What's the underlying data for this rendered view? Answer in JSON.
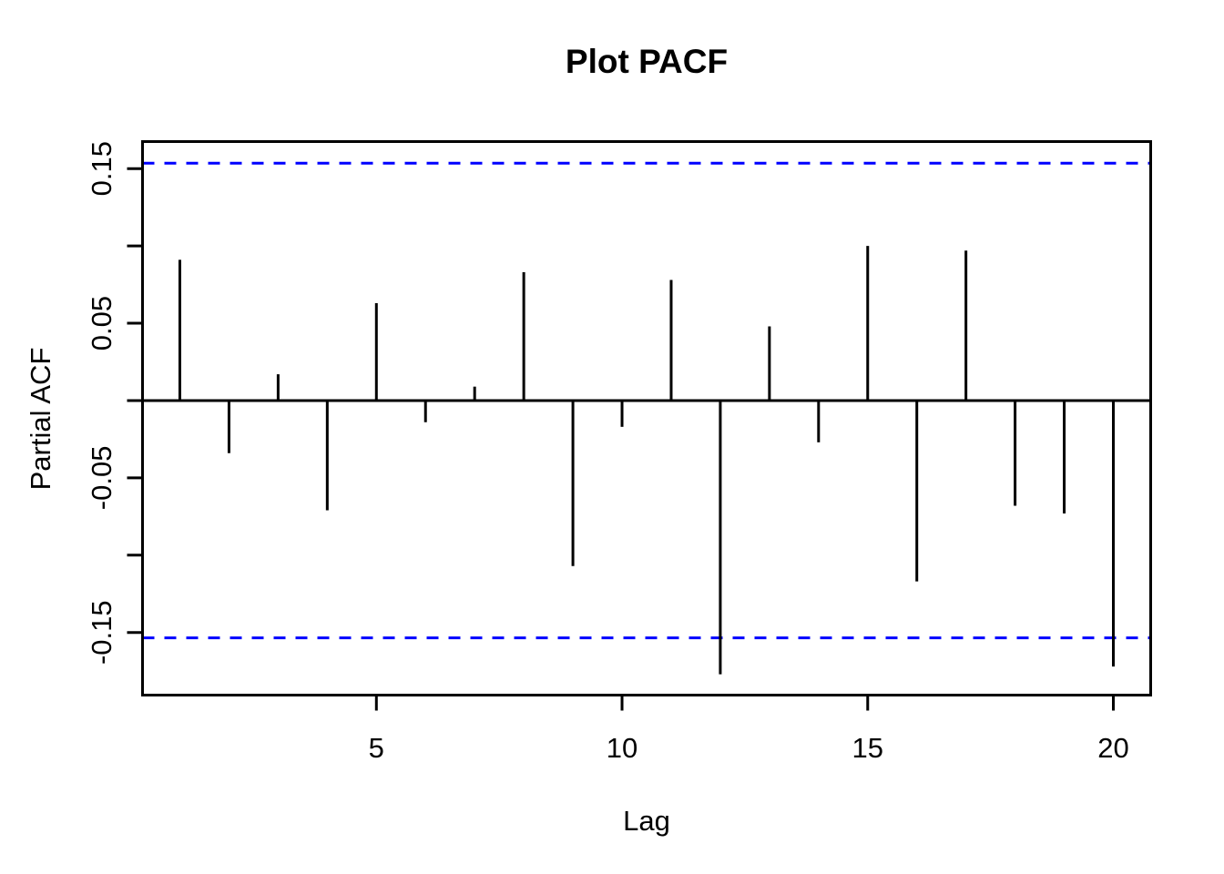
{
  "figure": {
    "title": "Plot PACF",
    "x_axis_label": "Lag",
    "y_axis_label": "Partial ACF"
  },
  "colors": {
    "spike": "#000000",
    "axis": "#000000",
    "confidence_line": "#0000FF",
    "background": "#FFFFFF",
    "text": "#000000"
  },
  "chart_data": {
    "type": "bar",
    "subtype": "pacf-spike-plot",
    "title": "Plot PACF",
    "xlabel": "Lag",
    "ylabel": "Partial ACF",
    "x": [
      1,
      2,
      3,
      4,
      5,
      6,
      7,
      8,
      9,
      10,
      11,
      12,
      13,
      14,
      15,
      16,
      17,
      18,
      19,
      20
    ],
    "values": [
      0.091,
      -0.034,
      0.017,
      -0.071,
      0.063,
      -0.014,
      0.009,
      0.083,
      -0.107,
      -0.017,
      0.078,
      -0.177,
      0.048,
      -0.027,
      0.1,
      -0.117,
      0.097,
      -0.068,
      -0.073,
      -0.172
    ],
    "confidence_bound": 0.1535,
    "confidence_line_style": "dashed",
    "baseline": 0,
    "xlim": [
      0.24,
      20.76
    ],
    "ylim": [
      -0.1905,
      0.1675
    ],
    "x_ticks": [
      5,
      10,
      15,
      20
    ],
    "x_tick_labels": [
      "5",
      "10",
      "15",
      "20"
    ],
    "y_ticks": [
      {
        "value": 0.15,
        "label": "0.15"
      },
      {
        "value": 0.1,
        "label": ""
      },
      {
        "value": 0.05,
        "label": "0.05"
      },
      {
        "value": 0.0,
        "label": ""
      },
      {
        "value": -0.05,
        "label": "-0.05"
      },
      {
        "value": -0.1,
        "label": ""
      },
      {
        "value": -0.15,
        "label": "-0.15"
      }
    ],
    "grid": false,
    "legend": null
  }
}
